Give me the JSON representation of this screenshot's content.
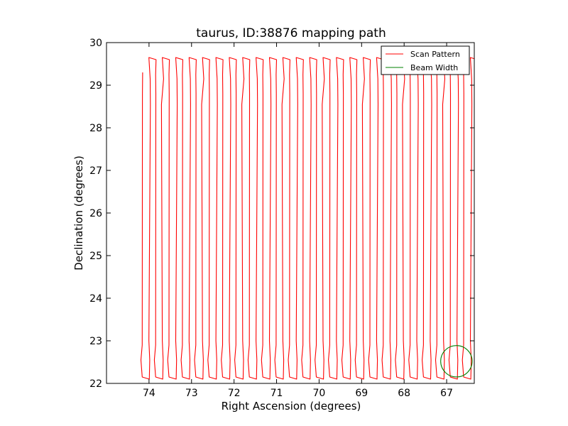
{
  "chart_data": {
    "type": "line",
    "title": "taurus, ID:38876 mapping path",
    "xlabel": "Right Ascension (degrees)",
    "ylabel": "Declination (degrees)",
    "xlim": [
      75.0,
      66.35
    ],
    "ylim": [
      22,
      30
    ],
    "x_inverted": true,
    "xticks": [
      74,
      73,
      72,
      71,
      70,
      69,
      68,
      67
    ],
    "yticks": [
      22,
      23,
      24,
      25,
      26,
      27,
      28,
      29,
      30
    ],
    "grid": false,
    "legend_position": "top-right",
    "series": [
      {
        "name": "Scan Pattern",
        "color": "#ff0000",
        "pattern": "boustrophedon",
        "ra_start": 74.15,
        "ra_end": 66.35,
        "ra_step": 0.1575,
        "dec_min": 22.1,
        "dec_max": 29.65,
        "dec_start": 29.3
      },
      {
        "name": "Beam Width",
        "color": "#008000",
        "shape": "circle",
        "center_ra": 66.77,
        "center_dec": 22.52,
        "radius_deg": 0.37
      }
    ]
  }
}
